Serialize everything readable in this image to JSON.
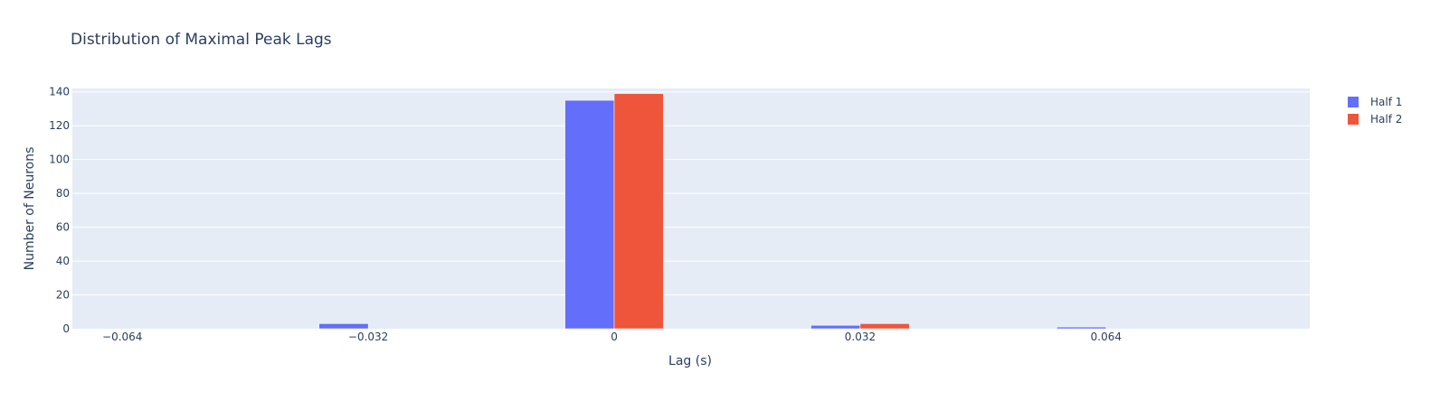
{
  "chart_data": {
    "type": "bar",
    "title": "Distribution of Maximal Peak Lags",
    "xlabel": "Lag (s)",
    "ylabel": "Number of Neurons",
    "x": [
      -0.064,
      -0.048,
      -0.032,
      -0.016,
      0,
      0.016,
      0.032,
      0.048,
      0.064,
      0.08
    ],
    "series": [
      {
        "name": "Half 1",
        "color": "#636efa",
        "values": [
          0,
          0,
          3,
          0,
          135,
          0,
          2,
          0,
          1,
          0
        ]
      },
      {
        "name": "Half 2",
        "color": "#ef553b",
        "values": [
          0,
          0,
          0,
          0,
          139,
          0,
          3,
          0,
          0,
          0
        ]
      }
    ],
    "xlim": [
      -0.0705,
      0.0905
    ],
    "ylim": [
      0,
      142
    ],
    "xticks": [
      -0.064,
      -0.032,
      0,
      0.032,
      0.064
    ],
    "xtick_labels": [
      "−0.064",
      "−0.032",
      "0",
      "0.032",
      "0.064"
    ],
    "yticks": [
      0,
      20,
      40,
      60,
      80,
      100,
      120,
      140
    ],
    "ytick_labels": [
      "0",
      "20",
      "40",
      "60",
      "80",
      "100",
      "120",
      "140"
    ],
    "grid": true,
    "plot_background": "#e5ecf6",
    "legend_position": "right"
  }
}
